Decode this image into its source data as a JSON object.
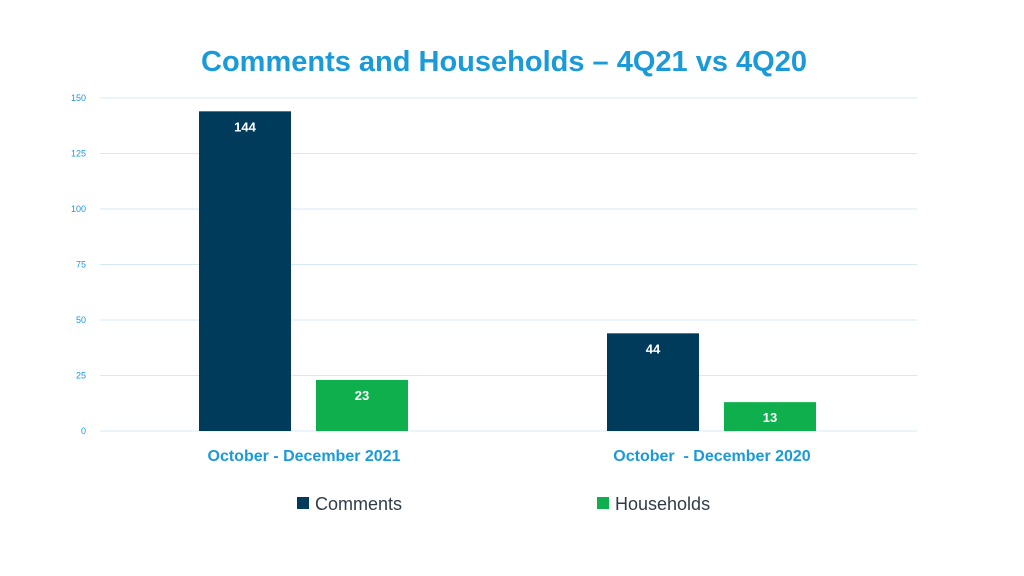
{
  "chart_data": {
    "type": "bar",
    "title": "Comments and Households – 4Q21 vs 4Q20",
    "categories": [
      "October - December 2021",
      "October  - December 2020"
    ],
    "series": [
      {
        "name": "Comments",
        "values": [
          144,
          44
        ],
        "color": "#003b5c"
      },
      {
        "name": "Households",
        "values": [
          23,
          13
        ],
        "color": "#0eaf4c"
      }
    ],
    "yticks": [
      "0",
      "25",
      "50",
      "75",
      "100",
      "125",
      "150"
    ],
    "ylim": [
      0,
      150
    ],
    "grid": true,
    "legend": "bottom",
    "xlabel": "",
    "ylabel": ""
  }
}
